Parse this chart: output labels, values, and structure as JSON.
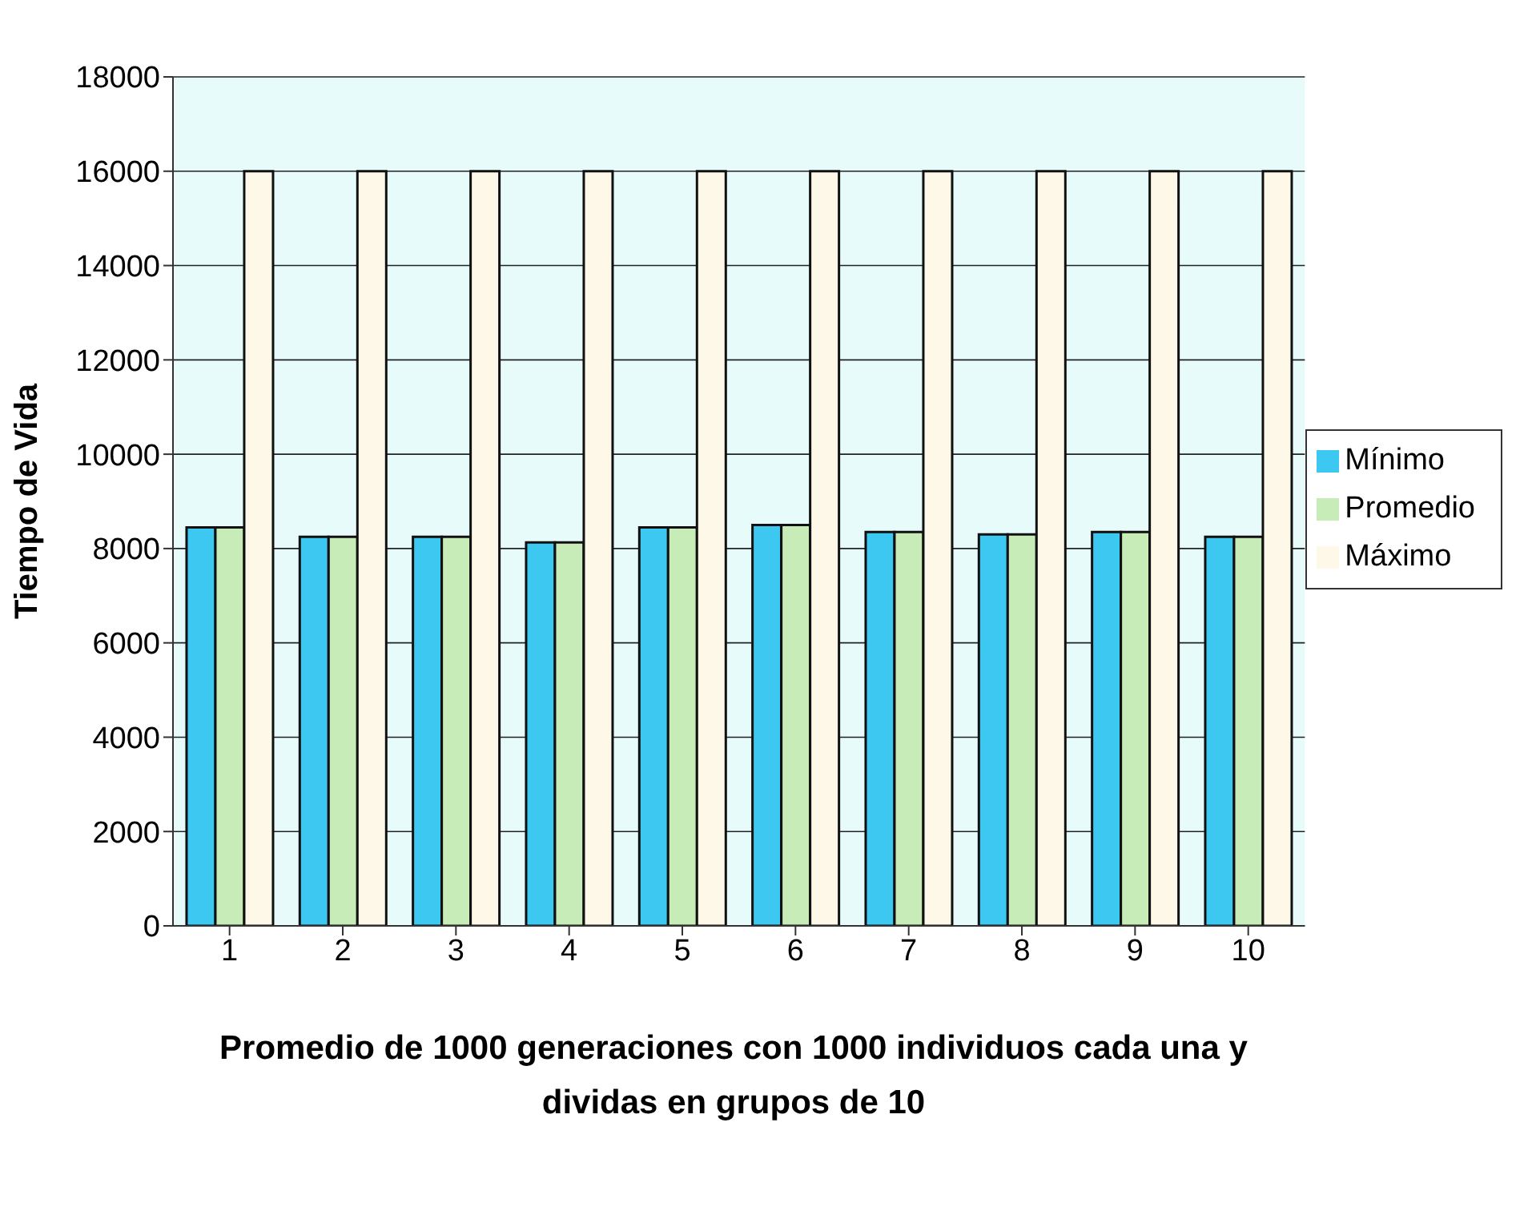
{
  "chart_data": {
    "type": "bar",
    "xlabel": "Promedio de 1000 generaciones con 1000 individuos cada una y dividas en grupos de 10",
    "ylabel": "Tiempo de Vida",
    "categories": [
      "1",
      "2",
      "3",
      "4",
      "5",
      "6",
      "7",
      "8",
      "9",
      "10"
    ],
    "series": [
      {
        "name": "Mínimo",
        "color": "#3cc8f0",
        "values": [
          8450,
          8250,
          8250,
          8130,
          8450,
          8500,
          8350,
          8300,
          8350,
          8250
        ]
      },
      {
        "name": "Promedio",
        "color": "#c8ecb8",
        "values": [
          8450,
          8250,
          8250,
          8130,
          8450,
          8500,
          8350,
          8300,
          8350,
          8250
        ]
      },
      {
        "name": "Máximo",
        "color": "#fdf8e8",
        "values": [
          16000,
          16000,
          16000,
          16000,
          16000,
          16000,
          16000,
          16000,
          16000,
          16000
        ]
      }
    ],
    "ylim": [
      0,
      18000
    ],
    "yticks": [
      0,
      2000,
      4000,
      6000,
      8000,
      10000,
      12000,
      14000,
      16000,
      18000
    ],
    "grid": "y",
    "legend": "right"
  }
}
